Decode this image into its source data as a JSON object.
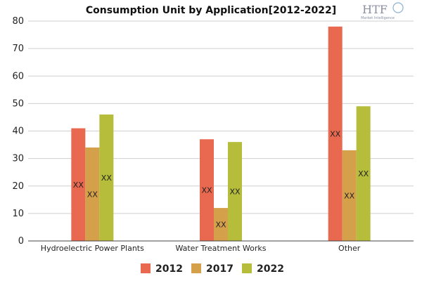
{
  "chart_data": {
    "type": "bar",
    "title": "Consumption Unit by  Application[2012-2022]",
    "categories": [
      "Hydroelectric Power Plants",
      "Water Treatment Works",
      "Other"
    ],
    "series": [
      {
        "name": "2012",
        "values": [
          41,
          37,
          78
        ],
        "color": "#e8694f"
      },
      {
        "name": "2017",
        "values": [
          34,
          12,
          33
        ],
        "color": "#d4a04a"
      },
      {
        "name": "2022",
        "values": [
          46,
          36,
          49
        ],
        "color": "#b5bd3a"
      }
    ],
    "data_label": "XX",
    "ylim": [
      0,
      80
    ],
    "yticks": [
      0,
      10,
      20,
      30,
      40,
      50,
      60,
      70,
      80
    ],
    "grid": true,
    "legend_position": "bottom"
  },
  "watermark": {
    "main": "HTF",
    "sub": "Market Intelligence"
  }
}
